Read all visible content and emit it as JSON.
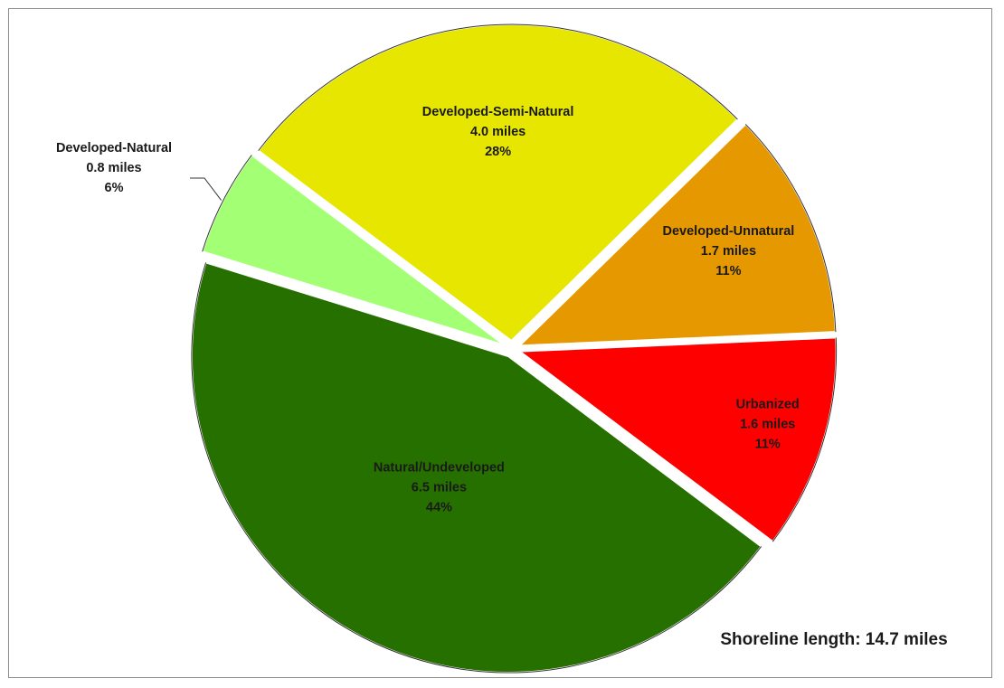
{
  "chart_data": {
    "type": "pie",
    "slices": [
      {
        "label": "Urbanized",
        "value": 1.6,
        "value_text": "1.6 miles",
        "percent_text": "11%",
        "color": "#ff0000"
      },
      {
        "label": "Natural/Undeveloped",
        "value": 6.5,
        "value_text": "6.5 miles",
        "percent_text": "44%",
        "color": "#267000"
      },
      {
        "label": "Developed-Natural",
        "value": 0.8,
        "value_text": "0.8 miles",
        "percent_text": "6%",
        "color": "#a3ff73"
      },
      {
        "label": "Developed-Semi-Natural",
        "value": 4.0,
        "value_text": "4.0 miles",
        "percent_text": "28%",
        "color": "#e6e600"
      },
      {
        "label": "Developed-Unnatural",
        "value": 1.7,
        "value_text": "1.7 miles",
        "percent_text": "11%",
        "color": "#e69800"
      }
    ],
    "start_angle_deg": 90,
    "direction": "clockwise",
    "exploded": true,
    "legend": "none",
    "annotation": "Shoreline length: 14.7 miles"
  }
}
